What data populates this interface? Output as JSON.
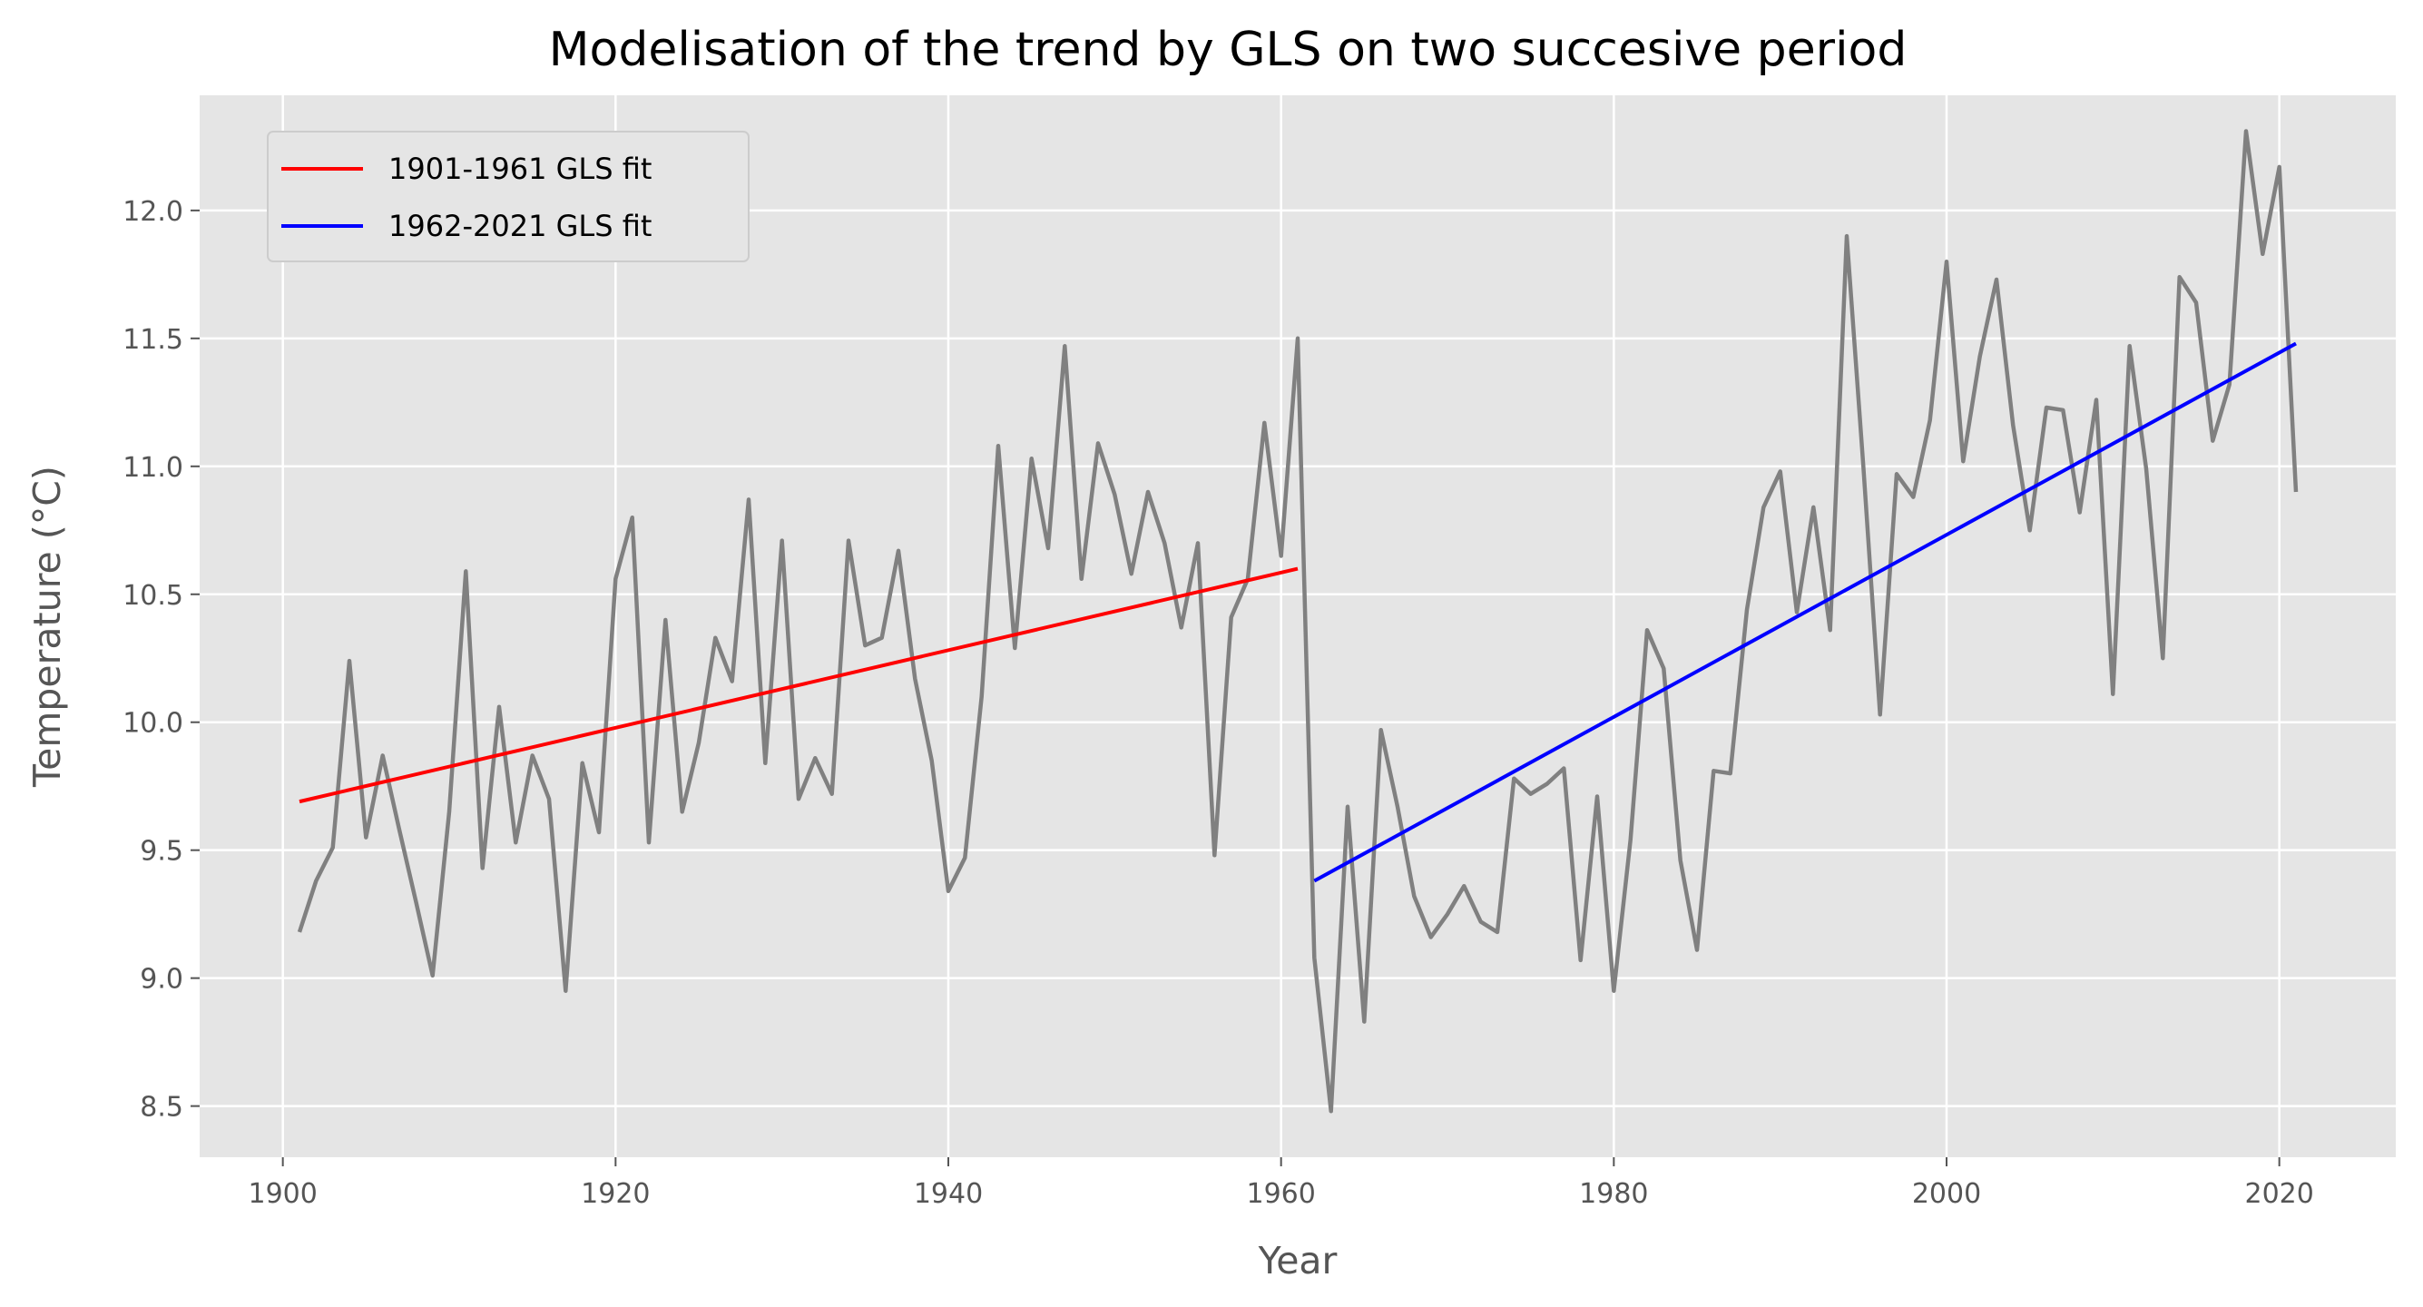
{
  "chart_data": {
    "type": "line",
    "title": "Modelisation of the trend by GLS on two succesive period",
    "xlabel": "Year",
    "ylabel": "Temperature (°C)",
    "xlim": [
      1895,
      2027
    ],
    "ylim": [
      8.3,
      12.45
    ],
    "xticks": [
      1900,
      1920,
      1940,
      1960,
      1980,
      2000,
      2020
    ],
    "yticks": [
      8.5,
      9.0,
      9.5,
      10.0,
      10.5,
      11.0,
      11.5,
      12.0
    ],
    "grid": true,
    "legend_position": "top-left",
    "colors": {
      "observed": "#808080",
      "fit1": "#ff0000",
      "fit2": "#0000ff",
      "background": "#e5e5e5",
      "grid": "#ffffff"
    },
    "observed": {
      "x_start": 1901,
      "values": [
        9.18,
        9.38,
        9.51,
        10.24,
        9.55,
        9.87,
        9.58,
        9.3,
        9.01,
        9.65,
        10.59,
        9.43,
        10.06,
        9.53,
        9.87,
        9.7,
        8.95,
        9.84,
        9.57,
        10.56,
        10.8,
        9.53,
        10.4,
        9.65,
        9.92,
        10.33,
        10.16,
        10.87,
        9.84,
        10.71,
        9.7,
        9.86,
        9.72,
        10.71,
        10.3,
        10.33,
        10.67,
        10.17,
        9.85,
        9.34,
        9.47,
        10.1,
        11.08,
        10.29,
        11.03,
        10.68,
        11.47,
        10.56,
        11.09,
        10.89,
        10.58,
        10.9,
        10.7,
        10.37,
        10.7,
        9.48,
        10.41,
        10.56,
        11.17,
        10.65,
        11.5,
        9.08,
        8.48,
        9.67,
        8.83,
        9.97,
        9.67,
        9.32,
        9.16,
        9.25,
        9.36,
        9.22,
        9.18,
        9.78,
        9.72,
        9.76,
        9.82,
        9.07,
        9.71,
        8.95,
        9.54,
        10.36,
        10.21,
        9.46,
        9.11,
        9.81,
        9.8,
        10.44,
        10.84,
        10.98,
        10.43,
        10.84,
        10.36,
        11.9,
        11.0,
        10.03,
        10.97,
        10.88,
        11.18,
        11.8,
        11.02,
        11.43,
        11.73,
        11.16,
        10.75,
        11.23,
        11.22,
        10.82,
        11.26,
        10.11,
        11.47,
        10.99,
        10.25,
        11.74,
        11.64,
        11.1,
        11.32,
        12.31,
        11.83,
        12.17,
        10.9
      ]
    },
    "series": [
      {
        "name": "1901-1961 GLS fit",
        "x": [
          1901,
          1961
        ],
        "values": [
          9.69,
          10.6
        ]
      },
      {
        "name": "1962-2021 GLS fit",
        "x": [
          1962,
          2021
        ],
        "values": [
          9.38,
          11.48
        ]
      }
    ]
  }
}
